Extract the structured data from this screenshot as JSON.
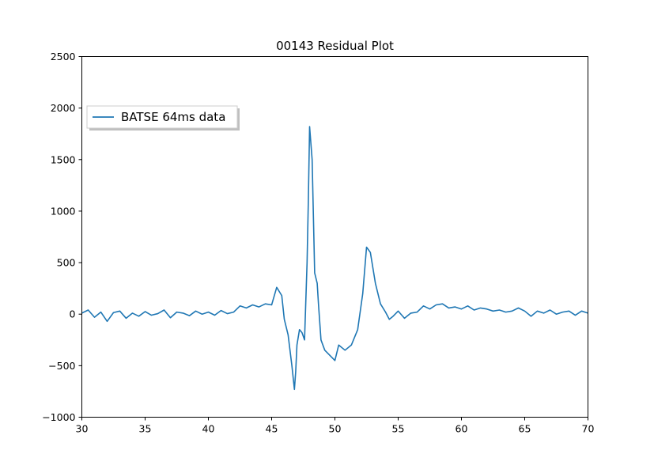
{
  "chart_data": {
    "type": "line",
    "title": "00143 Residual Plot",
    "xlabel": "",
    "ylabel": "",
    "xlim": [
      30,
      70
    ],
    "ylim": [
      -1000,
      2500
    ],
    "x_ticks": [
      30,
      35,
      40,
      45,
      50,
      55,
      60,
      65,
      70
    ],
    "y_ticks": [
      -1000,
      -500,
      0,
      500,
      1000,
      1500,
      2000,
      2500
    ],
    "x_tick_labels": [
      "30",
      "35",
      "40",
      "45",
      "50",
      "55",
      "60",
      "65",
      "70"
    ],
    "y_tick_labels": [
      "−1000",
      "−500",
      "0",
      "500",
      "1000",
      "1500",
      "2000",
      "2500"
    ],
    "grid": false,
    "legend": {
      "placement": "upper-left",
      "entries": [
        "BATSE 64ms data"
      ]
    },
    "series": [
      {
        "name": "BATSE 64ms data",
        "color": "#1f77b4",
        "x": [
          30.0,
          30.5,
          31.0,
          31.5,
          32.0,
          32.5,
          33.0,
          33.5,
          34.0,
          34.5,
          35.0,
          35.5,
          36.0,
          36.5,
          37.0,
          37.5,
          38.0,
          38.5,
          39.0,
          39.5,
          40.0,
          40.5,
          41.0,
          41.5,
          42.0,
          42.5,
          43.0,
          43.5,
          44.0,
          44.5,
          45.0,
          45.4,
          45.8,
          46.0,
          46.3,
          46.6,
          46.8,
          46.9,
          47.0,
          47.2,
          47.4,
          47.6,
          47.8,
          47.9,
          48.0,
          48.2,
          48.4,
          48.6,
          48.7,
          48.9,
          49.2,
          49.6,
          50.0,
          50.3,
          50.8,
          51.3,
          51.8,
          52.2,
          52.5,
          52.8,
          53.2,
          53.6,
          54.0,
          54.3,
          54.6,
          55.0,
          55.5,
          56.0,
          56.5,
          57.0,
          57.5,
          58.0,
          58.5,
          59.0,
          59.5,
          60.0,
          60.5,
          61.0,
          61.5,
          62.0,
          62.5,
          63.0,
          63.5,
          64.0,
          64.5,
          65.0,
          65.5,
          66.0,
          66.5,
          67.0,
          67.5,
          68.0,
          68.5,
          69.0,
          69.5,
          70.0
        ],
        "y": [
          10,
          40,
          -30,
          20,
          -70,
          15,
          30,
          -40,
          10,
          -20,
          25,
          -10,
          5,
          40,
          -35,
          20,
          10,
          -15,
          30,
          0,
          20,
          -10,
          35,
          5,
          20,
          80,
          60,
          90,
          70,
          100,
          90,
          260,
          180,
          -50,
          -200,
          -500,
          -730,
          -560,
          -300,
          -150,
          -180,
          -250,
          500,
          1100,
          1820,
          1500,
          400,
          300,
          100,
          -250,
          -350,
          -400,
          -450,
          -300,
          -350,
          -300,
          -150,
          200,
          650,
          600,
          300,
          100,
          20,
          -50,
          -20,
          30,
          -40,
          10,
          20,
          80,
          50,
          90,
          100,
          60,
          70,
          50,
          80,
          40,
          60,
          50,
          30,
          40,
          20,
          30,
          60,
          30,
          -20,
          30,
          10,
          40,
          0,
          20,
          30,
          -10,
          30,
          10
        ]
      }
    ]
  }
}
